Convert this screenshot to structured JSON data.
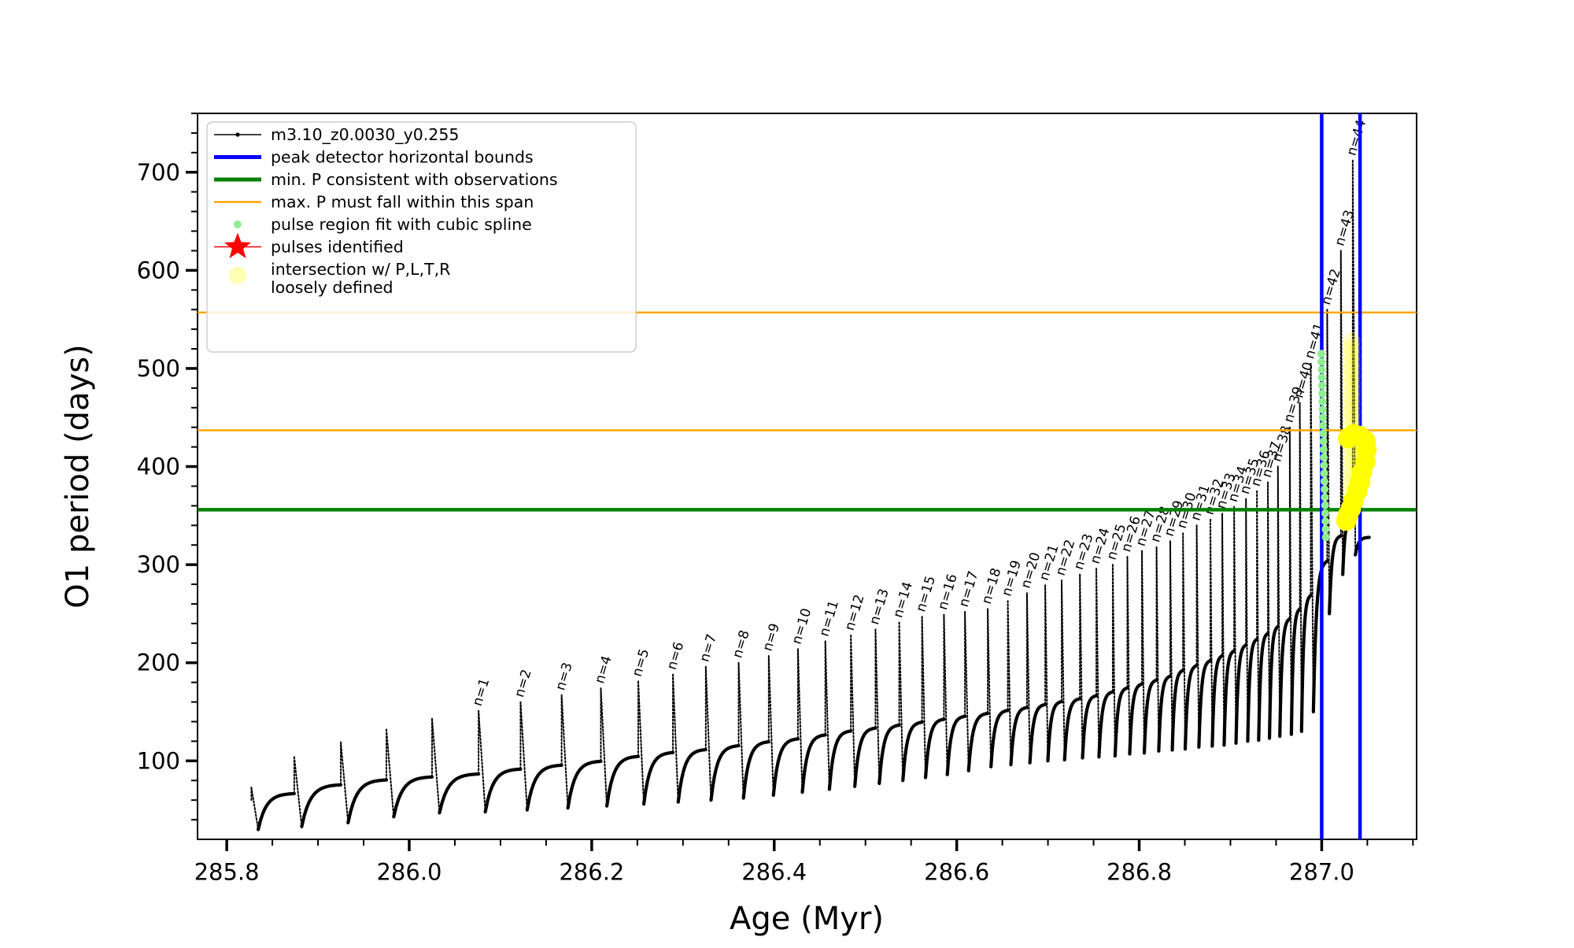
{
  "colors": {
    "series": "#000000",
    "peak_bounds": "#0000ff",
    "min_p": "#008000",
    "max_p_span": "#ffa500",
    "spline_dots": "#90ee90",
    "pulse_star": "#ff0000",
    "intersection": "#ffff00",
    "legend_border": "#cccccc",
    "legend_bg": "rgba(255,255,255,0.82)"
  },
  "legend": {
    "items": [
      {
        "marker": "line-dot",
        "color": "#000000",
        "label": "m3.10_z0.0030_y0.255"
      },
      {
        "marker": "thick-line",
        "color": "#0000ff",
        "label": "peak detector horizontal bounds"
      },
      {
        "marker": "thick-line",
        "color": "#008000",
        "label": "min. P consistent with observations"
      },
      {
        "marker": "line",
        "color": "#ffa500",
        "label": "max. P must fall within this span"
      },
      {
        "marker": "dot",
        "color": "#90ee90",
        "label": "pulse region fit with cubic spline"
      },
      {
        "marker": "star",
        "color": "#ff0000",
        "label": "pulses identified"
      },
      {
        "marker": "circle",
        "color": "rgba(255,255,0,0.30)",
        "label": "intersection w/ P,L,T,R",
        "label2": "loosely defined"
      }
    ]
  },
  "chart_data": {
    "type": "line",
    "title": "",
    "xlabel": "Age (Myr)",
    "ylabel": "O1 period (days)",
    "xlim": [
      285.768,
      287.104
    ],
    "ylim": [
      20,
      760
    ],
    "grid": false,
    "legend_position": "upper left",
    "x_major_ticks": [
      {
        "v": 285.8,
        "label": "285.8"
      },
      {
        "v": 286.0,
        "label": "286.0"
      },
      {
        "v": 286.2,
        "label": "286.2"
      },
      {
        "v": 286.4,
        "label": "286.4"
      },
      {
        "v": 286.6,
        "label": "286.6"
      },
      {
        "v": 286.8,
        "label": "286.8"
      },
      {
        "v": 287.0,
        "label": "287.0"
      }
    ],
    "x_minor_step": 0.05,
    "y_major_ticks": [
      {
        "v": 100,
        "label": "100"
      },
      {
        "v": 200,
        "label": "200"
      },
      {
        "v": 300,
        "label": "300"
      },
      {
        "v": 400,
        "label": "400"
      },
      {
        "v": 500,
        "label": "500"
      },
      {
        "v": 600,
        "label": "600"
      },
      {
        "v": 700,
        "label": "700"
      }
    ],
    "y_minor_step": 20,
    "series_name": "m3.10_z0.0030_y0.255",
    "hlines": [
      {
        "name": "min. P consistent with observations",
        "value": 356,
        "color": "#008000",
        "width": 4.5
      },
      {
        "name": "max. P span upper bound",
        "value": 557,
        "color": "#ffa500",
        "width": 2.5
      },
      {
        "name": "max. P span lower bound",
        "value": 437,
        "color": "#ffa500",
        "width": 2.5
      }
    ],
    "vlines": [
      {
        "name": "peak detector left bound",
        "value": 287.0,
        "color": "#0000ff",
        "width": 4.5
      },
      {
        "name": "peak detector right bound",
        "value": 287.042,
        "color": "#0000ff",
        "width": 4.5
      }
    ],
    "pulses": [
      {
        "n": null,
        "age": 285.827,
        "peak": 73,
        "base": 60,
        "trough": 30
      },
      {
        "n": null,
        "age": 285.874,
        "peak": 104,
        "base": 67,
        "trough": 33
      },
      {
        "n": null,
        "age": 285.925,
        "peak": 119,
        "base": 76,
        "trough": 37
      },
      {
        "n": null,
        "age": 285.975,
        "peak": 132,
        "base": 81,
        "trough": 43
      },
      {
        "n": null,
        "age": 286.025,
        "peak": 143,
        "base": 84,
        "trough": 47
      },
      {
        "n": 1,
        "age": 286.076,
        "peak": 151,
        "base": 87,
        "trough": 48
      },
      {
        "n": 2,
        "age": 286.122,
        "peak": 160,
        "base": 92,
        "trough": 50
      },
      {
        "n": 3,
        "age": 286.167,
        "peak": 167,
        "base": 96,
        "trough": 52
      },
      {
        "n": 4,
        "age": 286.21,
        "peak": 174,
        "base": 100,
        "trough": 54
      },
      {
        "n": 5,
        "age": 286.251,
        "peak": 181,
        "base": 105,
        "trough": 56
      },
      {
        "n": 6,
        "age": 286.289,
        "peak": 188,
        "base": 109,
        "trough": 58
      },
      {
        "n": 7,
        "age": 286.325,
        "peak": 196,
        "base": 112,
        "trough": 60
      },
      {
        "n": 8,
        "age": 286.361,
        "peak": 200,
        "base": 116,
        "trough": 62
      },
      {
        "n": 9,
        "age": 286.394,
        "peak": 207,
        "base": 120,
        "trough": 65
      },
      {
        "n": 10,
        "age": 286.426,
        "peak": 214,
        "base": 123,
        "trough": 68
      },
      {
        "n": 11,
        "age": 286.456,
        "peak": 222,
        "base": 127,
        "trough": 71
      },
      {
        "n": 12,
        "age": 286.484,
        "peak": 228,
        "base": 131,
        "trough": 74
      },
      {
        "n": 13,
        "age": 286.511,
        "peak": 234,
        "base": 134,
        "trough": 77
      },
      {
        "n": 14,
        "age": 286.537,
        "peak": 241,
        "base": 137,
        "trough": 80
      },
      {
        "n": 15,
        "age": 286.562,
        "peak": 247,
        "base": 140,
        "trough": 83
      },
      {
        "n": 16,
        "age": 286.586,
        "peak": 249,
        "base": 143,
        "trough": 86
      },
      {
        "n": 17,
        "age": 286.609,
        "peak": 252,
        "base": 146,
        "trough": 90
      },
      {
        "n": 18,
        "age": 286.634,
        "peak": 255,
        "base": 149,
        "trough": 94
      },
      {
        "n": 19,
        "age": 286.656,
        "peak": 263,
        "base": 152,
        "trough": 96
      },
      {
        "n": 20,
        "age": 286.677,
        "peak": 271,
        "base": 155,
        "trough": 98
      },
      {
        "n": 21,
        "age": 286.697,
        "peak": 279,
        "base": 158,
        "trough": 100
      },
      {
        "n": 22,
        "age": 286.715,
        "peak": 284,
        "base": 161,
        "trough": 101
      },
      {
        "n": 23,
        "age": 286.735,
        "peak": 290,
        "base": 164,
        "trough": 103
      },
      {
        "n": 24,
        "age": 286.753,
        "peak": 296,
        "base": 167,
        "trough": 104
      },
      {
        "n": 25,
        "age": 286.771,
        "peak": 300,
        "base": 171,
        "trough": 105
      },
      {
        "n": 26,
        "age": 286.787,
        "peak": 308,
        "base": 175,
        "trough": 107
      },
      {
        "n": 27,
        "age": 286.803,
        "peak": 314,
        "base": 179,
        "trough": 108
      },
      {
        "n": 28,
        "age": 286.819,
        "peak": 318,
        "base": 183,
        "trough": 110
      },
      {
        "n": 29,
        "age": 286.834,
        "peak": 324,
        "base": 187,
        "trough": 111
      },
      {
        "n": 30,
        "age": 286.848,
        "peak": 332,
        "base": 193,
        "trough": 112
      },
      {
        "n": 31,
        "age": 286.863,
        "peak": 340,
        "base": 198,
        "trough": 114
      },
      {
        "n": 32,
        "age": 286.878,
        "peak": 346,
        "base": 203,
        "trough": 115
      },
      {
        "n": 33,
        "age": 286.891,
        "peak": 352,
        "base": 208,
        "trough": 116
      },
      {
        "n": 34,
        "age": 286.904,
        "peak": 359,
        "base": 213,
        "trough": 118
      },
      {
        "n": 35,
        "age": 286.917,
        "peak": 367,
        "base": 219,
        "trough": 120
      },
      {
        "n": 36,
        "age": 286.929,
        "peak": 375,
        "base": 225,
        "trough": 121
      },
      {
        "n": 37,
        "age": 286.941,
        "peak": 384,
        "base": 231,
        "trough": 123
      },
      {
        "n": 38,
        "age": 286.952,
        "peak": 400,
        "base": 238,
        "trough": 125
      },
      {
        "n": 39,
        "age": 286.965,
        "peak": 440,
        "base": 246,
        "trough": 127
      },
      {
        "n": 40,
        "age": 286.976,
        "peak": 465,
        "base": 256,
        "trough": 130
      },
      {
        "n": 41,
        "age": 286.988,
        "peak": 505,
        "base": 270,
        "trough": 150
      },
      {
        "n": 42,
        "age": 287.006,
        "peak": 560,
        "base": 305,
        "trough": 250
      },
      {
        "n": 43,
        "age": 287.021,
        "peak": 620,
        "base": 330,
        "trough": 290
      },
      {
        "n": 44,
        "age": 287.034,
        "peak": 712,
        "base": 350,
        "trough": 310
      }
    ],
    "series_end": {
      "age": 287.052,
      "value": 328
    },
    "spline_fit_dots": {
      "age_top": 286.9995,
      "age_bottom": 287.0045,
      "p_top": 515,
      "p_bottom": 328,
      "count": 24,
      "radius": 5
    },
    "intersection_faint_column": {
      "age": 287.033,
      "p_top": 528,
      "p_bottom": 362,
      "count": 24,
      "radius": 11
    },
    "intersection_blob": {
      "radius": 13,
      "points": [
        {
          "age": 287.029,
          "p": 429
        },
        {
          "age": 287.035,
          "p": 433
        },
        {
          "age": 287.042,
          "p": 431
        },
        {
          "age": 287.048,
          "p": 426
        },
        {
          "age": 287.049,
          "p": 417
        },
        {
          "age": 287.048,
          "p": 405
        },
        {
          "age": 287.044,
          "p": 394
        },
        {
          "age": 287.042,
          "p": 384
        },
        {
          "age": 287.039,
          "p": 375
        },
        {
          "age": 287.035,
          "p": 365
        },
        {
          "age": 287.032,
          "p": 357
        },
        {
          "age": 287.029,
          "p": 351
        },
        {
          "age": 287.027,
          "p": 345
        }
      ]
    }
  }
}
